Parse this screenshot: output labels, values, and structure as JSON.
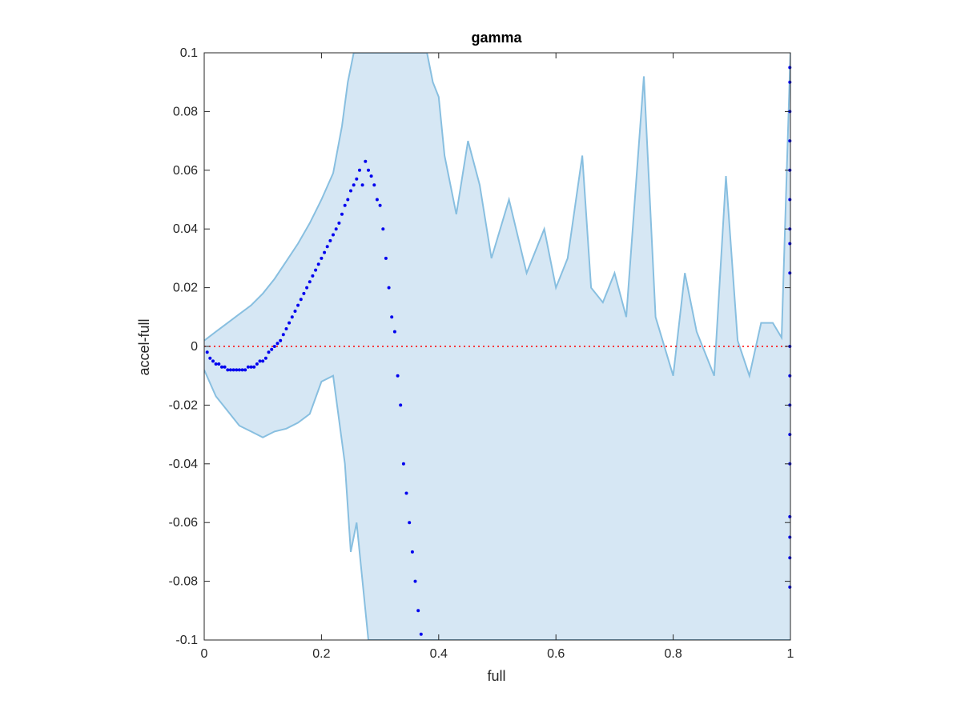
{
  "chart_data": {
    "type": "scatter",
    "title": "gamma",
    "xlabel": "full",
    "ylabel": "accel-full",
    "xlim": [
      0,
      1
    ],
    "ylim": [
      -0.1,
      0.1
    ],
    "xticks": [
      {
        "value": 0,
        "label": "0"
      },
      {
        "value": 0.2,
        "label": "0.2"
      },
      {
        "value": 0.4,
        "label": "0.4"
      },
      {
        "value": 0.6,
        "label": "0.6"
      },
      {
        "value": 0.8,
        "label": "0.8"
      },
      {
        "value": 1,
        "label": "1"
      }
    ],
    "yticks": [
      {
        "value": -0.1,
        "label": "-0.1"
      },
      {
        "value": -0.08,
        "label": "-0.08"
      },
      {
        "value": -0.06,
        "label": "-0.06"
      },
      {
        "value": -0.04,
        "label": "-0.04"
      },
      {
        "value": -0.02,
        "label": "-0.02"
      },
      {
        "value": 0,
        "label": "0"
      },
      {
        "value": 0.02,
        "label": "0.02"
      },
      {
        "value": 0.04,
        "label": "0.04"
      },
      {
        "value": 0.06,
        "label": "0.06"
      },
      {
        "value": 0.08,
        "label": "0.08"
      },
      {
        "value": 0.1,
        "label": "0.1"
      }
    ],
    "grid": false,
    "reference_line": {
      "y": 0,
      "style": "dotted",
      "color": "#ff0000"
    },
    "colors": {
      "band_fill": "#d6e7f4",
      "band_line": "#88bfe0",
      "points": "#0000ee",
      "axes": "#262626"
    },
    "band": {
      "upper": [
        [
          0,
          0.002
        ],
        [
          0.02,
          0.005
        ],
        [
          0.04,
          0.008
        ],
        [
          0.06,
          0.011
        ],
        [
          0.08,
          0.014
        ],
        [
          0.1,
          0.018
        ],
        [
          0.12,
          0.023
        ],
        [
          0.14,
          0.029
        ],
        [
          0.16,
          0.035
        ],
        [
          0.18,
          0.042
        ],
        [
          0.2,
          0.05
        ],
        [
          0.22,
          0.059
        ],
        [
          0.235,
          0.075
        ],
        [
          0.245,
          0.09
        ],
        [
          0.255,
          0.1
        ],
        [
          0.38,
          0.1
        ],
        [
          0.39,
          0.09
        ],
        [
          0.4,
          0.085
        ],
        [
          0.41,
          0.065
        ],
        [
          0.43,
          0.045
        ],
        [
          0.45,
          0.07
        ],
        [
          0.47,
          0.055
        ],
        [
          0.49,
          0.03
        ],
        [
          0.52,
          0.05
        ],
        [
          0.55,
          0.025
        ],
        [
          0.58,
          0.04
        ],
        [
          0.6,
          0.02
        ],
        [
          0.62,
          0.03
        ],
        [
          0.645,
          0.065
        ],
        [
          0.66,
          0.02
        ],
        [
          0.68,
          0.015
        ],
        [
          0.7,
          0.025
        ],
        [
          0.72,
          0.01
        ],
        [
          0.75,
          0.092
        ],
        [
          0.77,
          0.01
        ],
        [
          0.8,
          -0.01
        ],
        [
          0.82,
          0.025
        ],
        [
          0.84,
          0.005
        ],
        [
          0.87,
          -0.01
        ],
        [
          0.89,
          0.058
        ],
        [
          0.91,
          0.002
        ],
        [
          0.93,
          -0.01
        ],
        [
          0.95,
          0.008
        ],
        [
          0.97,
          0.008
        ],
        [
          0.985,
          0.003
        ],
        [
          1.0,
          0.1
        ]
      ],
      "lower": [
        [
          0,
          -0.008
        ],
        [
          0.02,
          -0.017
        ],
        [
          0.04,
          -0.022
        ],
        [
          0.06,
          -0.027
        ],
        [
          0.08,
          -0.029
        ],
        [
          0.1,
          -0.031
        ],
        [
          0.12,
          -0.029
        ],
        [
          0.14,
          -0.028
        ],
        [
          0.16,
          -0.026
        ],
        [
          0.18,
          -0.023
        ],
        [
          0.2,
          -0.012
        ],
        [
          0.22,
          -0.01
        ],
        [
          0.24,
          -0.04
        ],
        [
          0.25,
          -0.07
        ],
        [
          0.26,
          -0.06
        ],
        [
          0.28,
          -0.1
        ],
        [
          0.3,
          -0.1
        ],
        [
          0.32,
          -0.1
        ],
        [
          0.34,
          -0.1
        ],
        [
          0.36,
          -0.1
        ],
        [
          0.38,
          -0.1
        ],
        [
          1.0,
          -0.1
        ]
      ]
    },
    "series": [
      {
        "x": [
          0.005,
          0.01,
          0.015,
          0.02,
          0.025,
          0.03,
          0.035,
          0.04,
          0.045,
          0.05,
          0.055,
          0.06,
          0.065,
          0.07,
          0.075,
          0.08,
          0.085,
          0.09,
          0.095,
          0.1,
          0.105,
          0.11,
          0.115,
          0.12,
          0.125,
          0.13,
          0.135,
          0.14,
          0.145,
          0.15,
          0.155,
          0.16,
          0.165,
          0.17,
          0.175,
          0.18,
          0.185,
          0.19,
          0.195,
          0.2,
          0.205,
          0.21,
          0.215,
          0.22,
          0.225,
          0.23,
          0.235,
          0.24,
          0.245,
          0.25,
          0.255,
          0.26,
          0.265,
          0.27,
          0.275,
          0.28,
          0.285,
          0.29,
          0.295,
          0.3,
          0.305,
          0.31,
          0.315,
          0.32,
          0.325,
          0.33,
          0.335,
          0.34,
          0.345,
          0.35,
          0.355,
          0.36,
          0.365,
          0.37,
          0.999,
          0.999,
          0.999,
          0.999,
          0.999,
          0.999,
          0.999,
          0.999,
          0.999,
          0.999,
          0.999,
          0.999,
          0.999,
          0.999,
          0.999,
          0.999,
          0.999,
          0.999
        ],
        "y": [
          -0.002,
          -0.004,
          -0.005,
          -0.006,
          -0.006,
          -0.007,
          -0.007,
          -0.008,
          -0.008,
          -0.008,
          -0.008,
          -0.008,
          -0.008,
          -0.008,
          -0.007,
          -0.007,
          -0.007,
          -0.006,
          -0.005,
          -0.005,
          -0.004,
          -0.002,
          -0.001,
          0.0,
          0.001,
          0.002,
          0.004,
          0.006,
          0.008,
          0.01,
          0.012,
          0.014,
          0.016,
          0.018,
          0.02,
          0.022,
          0.024,
          0.026,
          0.028,
          0.03,
          0.032,
          0.034,
          0.036,
          0.038,
          0.04,
          0.042,
          0.045,
          0.048,
          0.05,
          0.053,
          0.055,
          0.057,
          0.06,
          0.055,
          0.063,
          0.06,
          0.058,
          0.055,
          0.05,
          0.048,
          0.04,
          0.03,
          0.02,
          0.01,
          0.005,
          -0.01,
          -0.02,
          -0.04,
          -0.05,
          -0.06,
          -0.07,
          -0.08,
          -0.09,
          -0.098,
          0.095,
          0.09,
          0.08,
          0.07,
          0.06,
          0.05,
          0.04,
          0.035,
          0.025,
          0.0,
          -0.01,
          -0.02,
          -0.03,
          -0.04,
          -0.058,
          -0.065,
          -0.072,
          -0.082
        ]
      }
    ]
  }
}
